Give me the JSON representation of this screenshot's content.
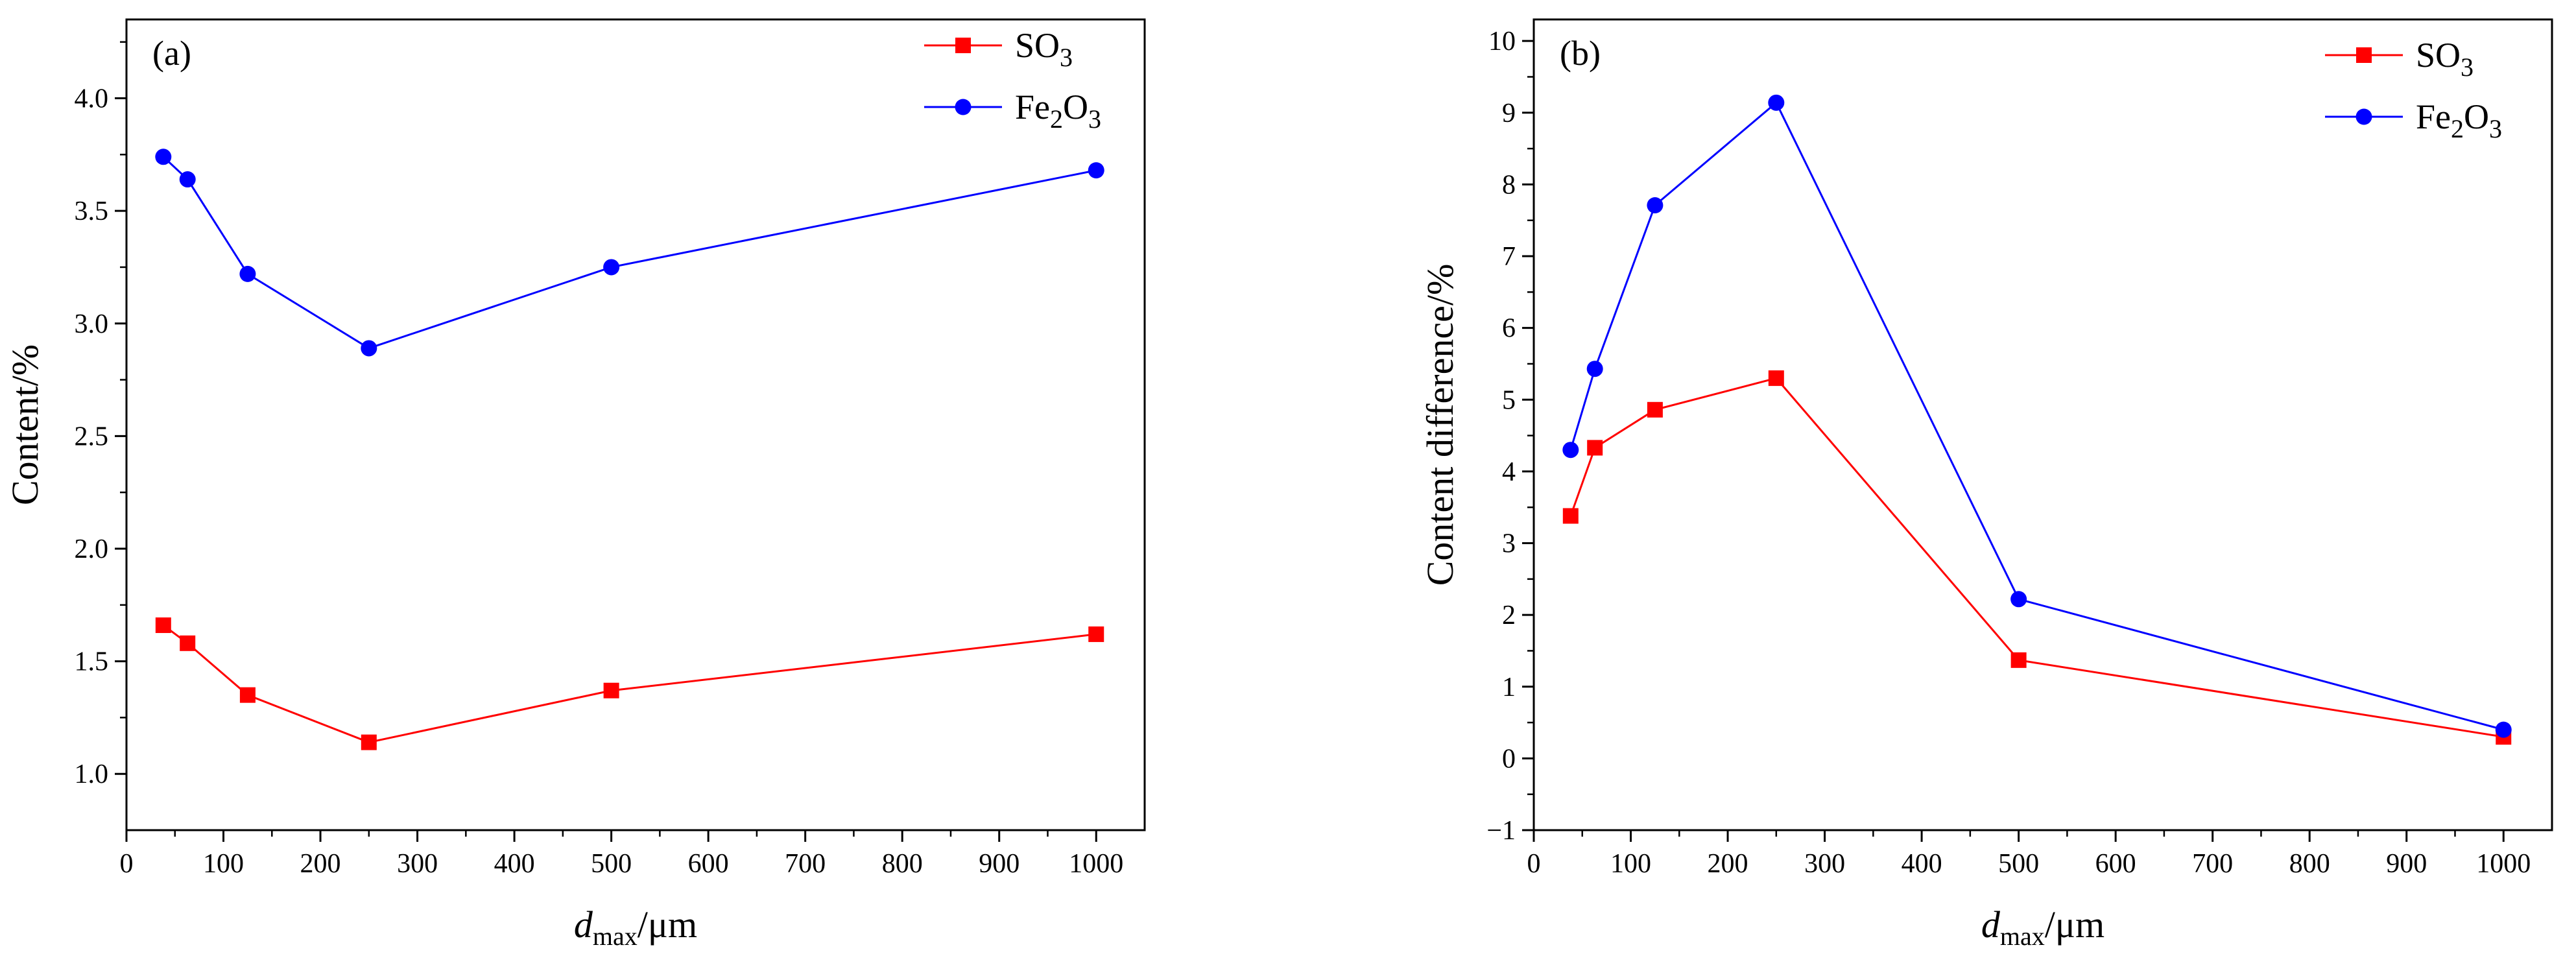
{
  "chart_data": [
    {
      "type": "line",
      "panel_label": "(a)",
      "xlabel": {
        "main": "d",
        "sub": "max",
        "rest": "/μm"
      },
      "ylabel": "Content/%",
      "xlim": [
        0,
        1050
      ],
      "ylim": [
        0.75,
        4.35
      ],
      "xticks": [
        "0",
        "100",
        "200",
        "300",
        "400",
        "500",
        "600",
        "700",
        "800",
        "900",
        "1000"
      ],
      "yticks": [
        "1.0",
        "1.5",
        "2.0",
        "2.5",
        "3.0",
        "3.5",
        "4.0"
      ],
      "legend_position": "top-right",
      "x": [
        38,
        63,
        125,
        250,
        500,
        1000
      ],
      "series": [
        {
          "name": "SO3",
          "label_parts": [
            [
              "SO",
              ""
            ],
            [
              "3",
              "sub"
            ]
          ],
          "color": "#ff0000",
          "marker": "square",
          "values": [
            1.66,
            1.58,
            1.35,
            1.14,
            1.37,
            1.62
          ]
        },
        {
          "name": "Fe2O3",
          "label_parts": [
            [
              "Fe",
              ""
            ],
            [
              "2",
              "sub"
            ],
            [
              "O",
              ""
            ],
            [
              "3",
              "sub"
            ]
          ],
          "color": "#0000ff",
          "marker": "circle",
          "values": [
            3.74,
            3.64,
            3.22,
            2.89,
            3.25,
            3.68
          ]
        }
      ]
    },
    {
      "type": "line",
      "panel_label": "(b)",
      "xlabel": {
        "main": "d",
        "sub": "max",
        "rest": "/μm"
      },
      "ylabel": "Content difference/%",
      "xlim": [
        0,
        1050
      ],
      "ylim": [
        -1,
        10.3
      ],
      "xticks": [
        "0",
        "100",
        "200",
        "300",
        "400",
        "500",
        "600",
        "700",
        "800",
        "900",
        "1000"
      ],
      "yticks": [
        "−1",
        "0",
        "1",
        "2",
        "3",
        "4",
        "5",
        "6",
        "7",
        "8",
        "9",
        "10"
      ],
      "legend_position": "top-right",
      "x": [
        38,
        63,
        125,
        250,
        500,
        1000
      ],
      "series": [
        {
          "name": "SO3",
          "label_parts": [
            [
              "SO",
              ""
            ],
            [
              "3",
              "sub"
            ]
          ],
          "color": "#ff0000",
          "marker": "square",
          "values": [
            3.38,
            4.33,
            4.86,
            5.3,
            1.37,
            0.3
          ]
        },
        {
          "name": "Fe2O3",
          "label_parts": [
            [
              "Fe",
              ""
            ],
            [
              "2",
              "sub"
            ],
            [
              "O",
              ""
            ],
            [
              "3",
              "sub"
            ]
          ],
          "color": "#0000ff",
          "marker": "circle",
          "values": [
            4.3,
            5.43,
            7.71,
            9.14,
            2.22,
            0.4
          ]
        }
      ]
    }
  ]
}
